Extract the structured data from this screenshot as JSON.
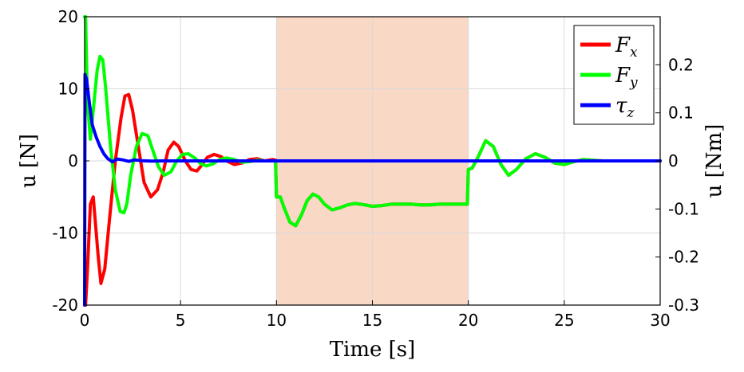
{
  "chart_data": {
    "type": "line",
    "xlabel": "Time [s]",
    "ylabel_left": "u [N]",
    "ylabel_right": "u [Nm]",
    "xlim": [
      0,
      30
    ],
    "ylim_left": [
      -20,
      20
    ],
    "ylim_right": [
      -0.3,
      0.3
    ],
    "x_ticks": [
      0,
      5,
      10,
      15,
      20,
      25,
      30
    ],
    "y_ticks_left": [
      -20,
      -10,
      0,
      10,
      20
    ],
    "y_ticks_left_labels": [
      "-20",
      "-10",
      "0",
      "10",
      "20"
    ],
    "y_ticks_right": [
      -0.3,
      -0.2,
      -0.1,
      0,
      0.1,
      0.2
    ],
    "y_ticks_right_labels": [
      "-0.3",
      "-0.2",
      "-0.1",
      "0",
      "0.1",
      "0.2"
    ],
    "grid": true,
    "legend_position": "top-right",
    "shaded_region": {
      "x_start": 10,
      "x_end": 20,
      "color": "#f9d8c6"
    },
    "series": [
      {
        "name": "F_x",
        "legend_main": "F",
        "legend_sub": "x",
        "axis": "left",
        "color": "#ff0000",
        "x": [
          0,
          0.05,
          0.15,
          0.3,
          0.45,
          0.7,
          0.85,
          1.05,
          1.3,
          1.6,
          1.9,
          2.1,
          2.3,
          2.5,
          2.8,
          3.1,
          3.45,
          3.8,
          4.1,
          4.35,
          4.65,
          4.9,
          5.25,
          5.55,
          5.85,
          6.1,
          6.4,
          6.75,
          7.1,
          7.4,
          7.8,
          8.2,
          8.6,
          9.0,
          9.4,
          9.8,
          9.95,
          10.0,
          10.2,
          10.4,
          10.7,
          11.0,
          11.3,
          11.6,
          11.9,
          12.2,
          12.5,
          12.9,
          13.3,
          13.7,
          14.1,
          14.6,
          15.0,
          15.5,
          16.0,
          16.5,
          17.0,
          17.5,
          18.0,
          18.5,
          19.0,
          19.5,
          19.95,
          20.0,
          20.2,
          20.5,
          20.9,
          21.3,
          21.7,
          22.1,
          22.5,
          23.0,
          23.5,
          24.0,
          24.5,
          25.0,
          25.5,
          26.0,
          26.5,
          27.0,
          27.5,
          28.0,
          28.5,
          29.0,
          29.5,
          30.0
        ],
        "y": [
          -20,
          -20,
          -15,
          -6,
          -5,
          -13,
          -17,
          -15,
          -8,
          0,
          6,
          9,
          9.2,
          7,
          2,
          -3,
          -5,
          -4,
          -1.5,
          1.5,
          2.6,
          2,
          0,
          -1.2,
          -1.4,
          -0.6,
          0.5,
          0.9,
          0.6,
          0,
          -0.5,
          -0.3,
          0.2,
          0.3,
          0,
          0.2,
          0.1,
          -5,
          -5,
          -6.5,
          -8.5,
          -9,
          -7.5,
          -5.5,
          -4.6,
          -5,
          -6,
          -6.8,
          -6.5,
          -6.1,
          -5.9,
          -6.1,
          -6.3,
          -6.2,
          -6.0,
          -6.0,
          -6.0,
          -6.1,
          -6.1,
          -6.0,
          -6.0,
          -6.0,
          -6.0,
          -1.2,
          -1,
          0.5,
          2.8,
          2,
          -0.5,
          -2,
          -1.2,
          0.3,
          1,
          0.5,
          -0.3,
          -0.5,
          -0.1,
          0.2,
          0.1,
          0,
          0,
          0,
          0,
          0,
          0,
          0
        ]
      },
      {
        "name": "F_y",
        "legend_main": "F",
        "legend_sub": "y",
        "axis": "left",
        "color": "#00ff00",
        "x": [
          0,
          0.05,
          0.15,
          0.3,
          0.45,
          0.65,
          0.8,
          0.95,
          1.1,
          1.35,
          1.6,
          1.85,
          2.05,
          2.2,
          2.4,
          2.7,
          3.0,
          3.3,
          3.55,
          3.85,
          4.15,
          4.5,
          4.8,
          5.1,
          5.4,
          5.75,
          6.05,
          6.35,
          6.7,
          7.05,
          7.4,
          7.8,
          8.2,
          8.6,
          9.0,
          9.4,
          9.8,
          9.95,
          10.0,
          10.2,
          10.4,
          10.7,
          11.0,
          11.3,
          11.6,
          11.9,
          12.2,
          12.5,
          12.9,
          13.3,
          13.7,
          14.1,
          14.6,
          15.0,
          15.5,
          16.0,
          16.5,
          17.0,
          17.5,
          18.0,
          18.5,
          19.0,
          19.5,
          19.95,
          20.0,
          20.2,
          20.5,
          20.9,
          21.3,
          21.7,
          22.1,
          22.5,
          23.0,
          23.5,
          24.0,
          24.5,
          25.0,
          25.5,
          26.0,
          26.5,
          27.0,
          27.5,
          28.0,
          28.5,
          29.0,
          29.5,
          30.0
        ],
        "y": [
          20,
          20,
          8,
          3,
          7,
          12.5,
          14.5,
          14,
          10,
          2,
          -4,
          -7,
          -7.2,
          -6,
          -2,
          2,
          3.8,
          3.5,
          1.5,
          -0.8,
          -2,
          -1.5,
          0,
          0.9,
          1,
          0.4,
          -0.4,
          -0.7,
          -0.4,
          0.2,
          0.4,
          0.2,
          -0.2,
          -0.1,
          0.1,
          0,
          0,
          0,
          -5,
          -5,
          -6.5,
          -8.5,
          -9,
          -7.5,
          -5.5,
          -4.6,
          -5,
          -6,
          -6.8,
          -6.5,
          -6.1,
          -5.9,
          -6.1,
          -6.3,
          -6.2,
          -6.0,
          -6.0,
          -6.0,
          -6.1,
          -6.1,
          -6.0,
          -6.0,
          -6.0,
          -6.0,
          -1.2,
          -1,
          0.5,
          2.8,
          2,
          -0.5,
          -2,
          -1.2,
          0.3,
          1,
          0.5,
          -0.3,
          -0.5,
          -0.1,
          0.2,
          0.1,
          0,
          0,
          0,
          0,
          0,
          0,
          0
        ]
      },
      {
        "name": "tau_z",
        "legend_main": "τ",
        "legend_sub": "z",
        "axis": "right",
        "color": "#0000ff",
        "x": [
          0,
          0.02,
          0.1,
          0.25,
          0.4,
          0.6,
          0.8,
          1.0,
          1.2,
          1.45,
          1.7,
          2.0,
          2.3,
          2.6,
          3.0,
          3.5,
          4.0,
          5.0,
          6.0,
          8.0,
          10.0,
          12.0,
          15.0,
          20.0,
          25.0,
          30.0
        ],
        "y": [
          -0.3,
          0.18,
          0.17,
          0.12,
          0.075,
          0.05,
          0.03,
          0.015,
          0.005,
          -0.002,
          0.004,
          0.002,
          -0.001,
          0.002,
          0.0005,
          -0.0005,
          0,
          0,
          0,
          0,
          0,
          0,
          0,
          0,
          0,
          0
        ]
      }
    ]
  }
}
